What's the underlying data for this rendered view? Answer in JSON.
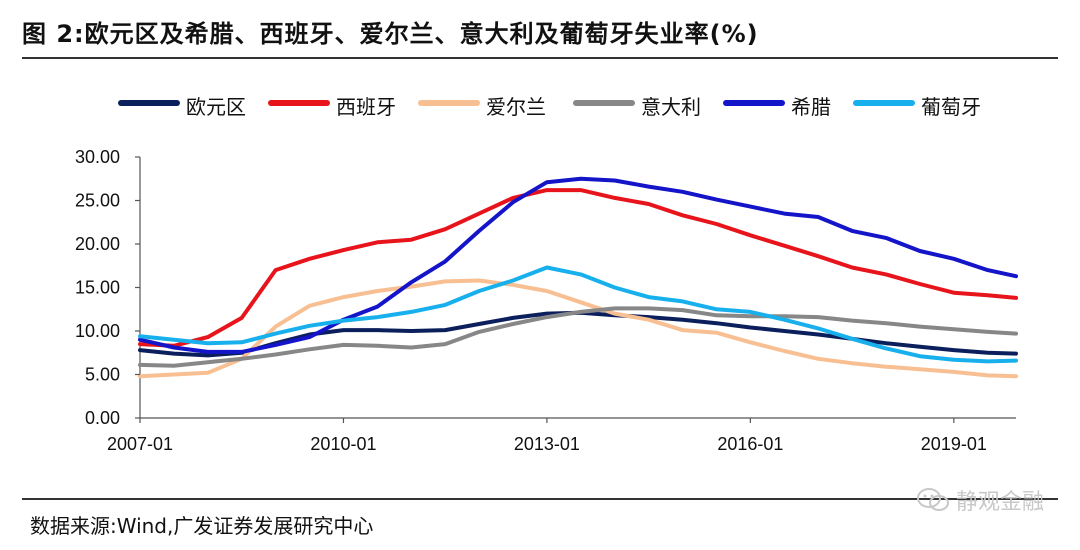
{
  "header": {
    "title": "图 2:欧元区及希腊、西班牙、爱尔兰、意大利及葡萄牙失业率(%)"
  },
  "footer": {
    "source": "数据来源:Wind,广发证券发展研究中心",
    "watermark": "静观金融"
  },
  "chart_data": {
    "type": "line",
    "title": "图 2:欧元区及希腊、西班牙、爱尔兰、意大利及葡萄牙失业率(%)",
    "xlabel": "",
    "ylabel": "",
    "ylim": [
      0,
      30
    ],
    "yticks": [
      "0.00",
      "5.00",
      "10.00",
      "15.00",
      "20.00",
      "25.00",
      "30.00"
    ],
    "xlim": [
      "2007-01",
      "2019-12"
    ],
    "xticks": [
      "2007-01",
      "2010-01",
      "2013-01",
      "2016-01",
      "2019-01"
    ],
    "grid": false,
    "legend_position": "top",
    "x": [
      "2007-01",
      "2007-07",
      "2008-01",
      "2008-07",
      "2009-01",
      "2009-07",
      "2010-01",
      "2010-07",
      "2011-01",
      "2011-07",
      "2012-01",
      "2012-07",
      "2013-01",
      "2013-07",
      "2014-01",
      "2014-07",
      "2015-01",
      "2015-07",
      "2016-01",
      "2016-07",
      "2017-01",
      "2017-07",
      "2018-01",
      "2018-07",
      "2019-01",
      "2019-07",
      "2019-12"
    ],
    "series": [
      {
        "name": "欧元区",
        "color": "#0b1f5c",
        "width": 4,
        "values": [
          7.8,
          7.4,
          7.2,
          7.5,
          8.6,
          9.6,
          10.1,
          10.1,
          10.0,
          10.1,
          10.8,
          11.5,
          12.0,
          12.1,
          11.8,
          11.6,
          11.3,
          10.9,
          10.4,
          10.0,
          9.6,
          9.1,
          8.6,
          8.2,
          7.8,
          7.5,
          7.4
        ]
      },
      {
        "name": "西班牙",
        "color": "#e8141c",
        "width": 4,
        "values": [
          8.5,
          8.3,
          9.3,
          11.5,
          17.0,
          18.3,
          19.3,
          20.2,
          20.5,
          21.7,
          23.5,
          25.3,
          26.2,
          26.2,
          25.3,
          24.6,
          23.3,
          22.3,
          21.0,
          19.8,
          18.6,
          17.3,
          16.5,
          15.4,
          14.4,
          14.1,
          13.8
        ]
      },
      {
        "name": "爱尔兰",
        "color": "#f7bf92",
        "width": 4,
        "values": [
          4.8,
          5.0,
          5.2,
          6.8,
          10.5,
          12.9,
          13.9,
          14.6,
          15.1,
          15.7,
          15.8,
          15.3,
          14.6,
          13.3,
          12.0,
          11.3,
          10.1,
          9.8,
          8.7,
          7.7,
          6.8,
          6.3,
          5.9,
          5.6,
          5.3,
          4.9,
          4.8
        ]
      },
      {
        "name": "意大利",
        "color": "#878787",
        "width": 4,
        "values": [
          6.1,
          6.0,
          6.4,
          6.8,
          7.3,
          7.9,
          8.4,
          8.3,
          8.1,
          8.5,
          9.9,
          10.8,
          11.6,
          12.2,
          12.6,
          12.6,
          12.4,
          11.8,
          11.7,
          11.7,
          11.6,
          11.2,
          10.9,
          10.5,
          10.2,
          9.9,
          9.7
        ]
      },
      {
        "name": "希腊",
        "color": "#1414c8",
        "width": 4,
        "values": [
          9.0,
          8.1,
          7.6,
          7.6,
          8.4,
          9.3,
          11.3,
          12.8,
          15.6,
          18.0,
          21.5,
          24.8,
          27.1,
          27.5,
          27.3,
          26.6,
          26.0,
          25.1,
          24.3,
          23.5,
          23.1,
          21.5,
          20.7,
          19.2,
          18.3,
          17.0,
          16.3
        ]
      },
      {
        "name": "葡萄牙",
        "color": "#18b0ec",
        "width": 4,
        "values": [
          9.4,
          9.0,
          8.6,
          8.7,
          9.7,
          10.6,
          11.2,
          11.6,
          12.2,
          13.0,
          14.6,
          15.8,
          17.3,
          16.5,
          15.0,
          13.9,
          13.4,
          12.5,
          12.2,
          11.3,
          10.3,
          9.1,
          8.0,
          7.1,
          6.7,
          6.5,
          6.6
        ]
      }
    ]
  }
}
